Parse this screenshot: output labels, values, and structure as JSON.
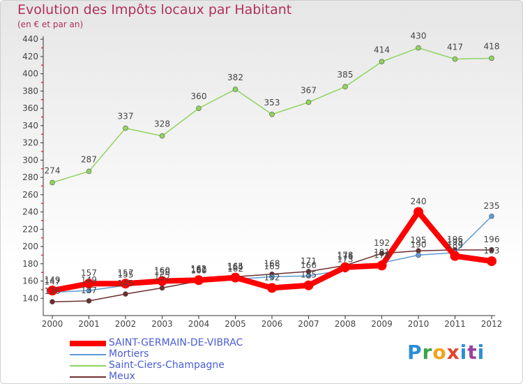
{
  "title": "Evolution des Impôts locaux par Habitant",
  "subtitle": "(en € et par an)",
  "logo_text": "Proxiti",
  "chart_data": {
    "type": "line",
    "title": "Evolution des Impôts locaux par Habitant",
    "subtitle": "(en € et par an)",
    "xlabel": "",
    "ylabel": "",
    "categories": [
      "2000",
      "2001",
      "2002",
      "2003",
      "2004",
      "2005",
      "2006",
      "2007",
      "2008",
      "2009",
      "2010",
      "2011",
      "2012"
    ],
    "ylim": [
      120,
      445
    ],
    "yticks": [
      140,
      160,
      180,
      200,
      220,
      240,
      260,
      280,
      300,
      320,
      340,
      360,
      380,
      400,
      420,
      440
    ],
    "grid": false,
    "legend_position": "bottom-left",
    "series": [
      {
        "name": "SAINT-GERMAIN-DE-VIBRAC",
        "color": "#ff0000",
        "values": [
          149,
          157,
          157,
          160,
          161,
          164,
          152,
          155,
          176,
          178,
          240,
          189,
          183
        ]
      },
      {
        "name": "Mortiers",
        "color": "#5b9bd5",
        "values": [
          147,
          149,
          155,
          158,
          162,
          162,
          165,
          166,
          173,
          181,
          190,
          193,
          235
        ]
      },
      {
        "name": "Saint-Ciers-Champagne",
        "color": "#8fd45f",
        "values": [
          274,
          287,
          337,
          328,
          360,
          382,
          353,
          367,
          385,
          414,
          430,
          417,
          418
        ]
      },
      {
        "name": "Meux",
        "color": "#6d2e2e",
        "values": [
          136,
          137,
          145,
          152,
          160,
          165,
          168,
          171,
          178,
          192,
          195,
          196,
          196
        ]
      }
    ]
  }
}
